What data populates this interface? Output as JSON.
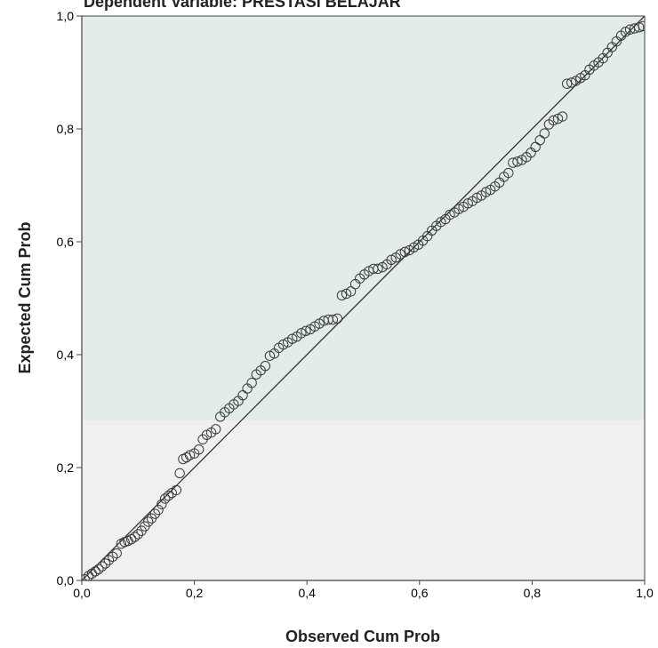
{
  "chart_data": {
    "type": "scatter",
    "title": "Dependent Variable: PRESTASI BELAJAR",
    "xlabel": "Observed Cum Prob",
    "ylabel": "Expected Cum Prob",
    "xlim": [
      0,
      1
    ],
    "ylim": [
      0,
      1
    ],
    "x_ticks": [
      "0,0",
      "0,2",
      "0,4",
      "0,6",
      "0,8",
      "1,0"
    ],
    "y_ticks": [
      "0,0",
      "0,2",
      "0,4",
      "0,6",
      "0,8",
      "1,0"
    ],
    "reference_line": {
      "from": [
        0,
        0
      ],
      "to": [
        1,
        1
      ]
    },
    "grid": false,
    "colors": {
      "plot_background_top": "#e2ece8",
      "plot_background_bottom": "#f0f0f0",
      "marker_stroke": "#3a3a3a",
      "line": "#333333"
    },
    "series": [
      {
        "points": [
          [
            0.005,
            0.002
          ],
          [
            0.012,
            0.008
          ],
          [
            0.018,
            0.012
          ],
          [
            0.024,
            0.016
          ],
          [
            0.03,
            0.02
          ],
          [
            0.036,
            0.025
          ],
          [
            0.042,
            0.03
          ],
          [
            0.048,
            0.036
          ],
          [
            0.055,
            0.042
          ],
          [
            0.062,
            0.048
          ],
          [
            0.07,
            0.065
          ],
          [
            0.076,
            0.068
          ],
          [
            0.082,
            0.07
          ],
          [
            0.088,
            0.073
          ],
          [
            0.094,
            0.077
          ],
          [
            0.1,
            0.082
          ],
          [
            0.106,
            0.088
          ],
          [
            0.112,
            0.096
          ],
          [
            0.118,
            0.104
          ],
          [
            0.124,
            0.11
          ],
          [
            0.13,
            0.118
          ],
          [
            0.136,
            0.125
          ],
          [
            0.142,
            0.135
          ],
          [
            0.148,
            0.145
          ],
          [
            0.154,
            0.15
          ],
          [
            0.16,
            0.155
          ],
          [
            0.168,
            0.16
          ],
          [
            0.174,
            0.19
          ],
          [
            0.18,
            0.215
          ],
          [
            0.186,
            0.218
          ],
          [
            0.192,
            0.222
          ],
          [
            0.2,
            0.225
          ],
          [
            0.208,
            0.232
          ],
          [
            0.215,
            0.25
          ],
          [
            0.222,
            0.258
          ],
          [
            0.23,
            0.262
          ],
          [
            0.238,
            0.268
          ],
          [
            0.246,
            0.29
          ],
          [
            0.254,
            0.298
          ],
          [
            0.262,
            0.305
          ],
          [
            0.27,
            0.312
          ],
          [
            0.278,
            0.318
          ],
          [
            0.286,
            0.328
          ],
          [
            0.294,
            0.34
          ],
          [
            0.302,
            0.35
          ],
          [
            0.31,
            0.365
          ],
          [
            0.318,
            0.372
          ],
          [
            0.326,
            0.38
          ],
          [
            0.334,
            0.398
          ],
          [
            0.342,
            0.402
          ],
          [
            0.35,
            0.412
          ],
          [
            0.358,
            0.418
          ],
          [
            0.366,
            0.422
          ],
          [
            0.374,
            0.428
          ],
          [
            0.382,
            0.432
          ],
          [
            0.39,
            0.438
          ],
          [
            0.398,
            0.442
          ],
          [
            0.406,
            0.445
          ],
          [
            0.414,
            0.45
          ],
          [
            0.422,
            0.455
          ],
          [
            0.43,
            0.46
          ],
          [
            0.438,
            0.462
          ],
          [
            0.446,
            0.462
          ],
          [
            0.454,
            0.464
          ],
          [
            0.462,
            0.505
          ],
          [
            0.47,
            0.508
          ],
          [
            0.478,
            0.512
          ],
          [
            0.486,
            0.525
          ],
          [
            0.494,
            0.535
          ],
          [
            0.502,
            0.542
          ],
          [
            0.51,
            0.548
          ],
          [
            0.518,
            0.552
          ],
          [
            0.526,
            0.552
          ],
          [
            0.534,
            0.555
          ],
          [
            0.542,
            0.56
          ],
          [
            0.55,
            0.568
          ],
          [
            0.558,
            0.572
          ],
          [
            0.566,
            0.578
          ],
          [
            0.574,
            0.582
          ],
          [
            0.582,
            0.585
          ],
          [
            0.59,
            0.59
          ],
          [
            0.598,
            0.595
          ],
          [
            0.606,
            0.602
          ],
          [
            0.614,
            0.61
          ],
          [
            0.622,
            0.62
          ],
          [
            0.63,
            0.628
          ],
          [
            0.638,
            0.635
          ],
          [
            0.646,
            0.64
          ],
          [
            0.654,
            0.648
          ],
          [
            0.662,
            0.652
          ],
          [
            0.67,
            0.658
          ],
          [
            0.678,
            0.662
          ],
          [
            0.686,
            0.668
          ],
          [
            0.694,
            0.672
          ],
          [
            0.702,
            0.678
          ],
          [
            0.71,
            0.682
          ],
          [
            0.718,
            0.688
          ],
          [
            0.726,
            0.692
          ],
          [
            0.734,
            0.698
          ],
          [
            0.742,
            0.705
          ],
          [
            0.75,
            0.715
          ],
          [
            0.758,
            0.722
          ],
          [
            0.766,
            0.74
          ],
          [
            0.774,
            0.742
          ],
          [
            0.782,
            0.745
          ],
          [
            0.79,
            0.75
          ],
          [
            0.798,
            0.758
          ],
          [
            0.806,
            0.768
          ],
          [
            0.814,
            0.78
          ],
          [
            0.822,
            0.792
          ],
          [
            0.83,
            0.808
          ],
          [
            0.838,
            0.815
          ],
          [
            0.846,
            0.818
          ],
          [
            0.854,
            0.822
          ],
          [
            0.862,
            0.88
          ],
          [
            0.87,
            0.882
          ],
          [
            0.878,
            0.885
          ],
          [
            0.886,
            0.89
          ],
          [
            0.894,
            0.895
          ],
          [
            0.902,
            0.905
          ],
          [
            0.91,
            0.912
          ],
          [
            0.918,
            0.918
          ],
          [
            0.926,
            0.925
          ],
          [
            0.934,
            0.935
          ],
          [
            0.942,
            0.945
          ],
          [
            0.95,
            0.955
          ],
          [
            0.958,
            0.965
          ],
          [
            0.966,
            0.972
          ],
          [
            0.974,
            0.976
          ],
          [
            0.982,
            0.978
          ],
          [
            0.99,
            0.98
          ],
          [
            0.997,
            0.982
          ]
        ]
      }
    ]
  }
}
